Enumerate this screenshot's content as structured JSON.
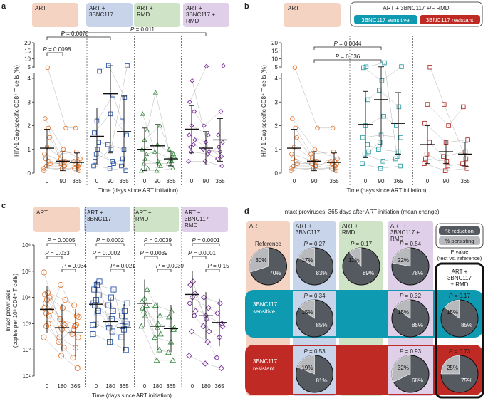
{
  "colors": {
    "art": "#f4d3c2",
    "art3bnc": "#c7d4ea",
    "artrmd": "#cfe3c6",
    "artall": "#dfcfe8",
    "orange": "#e8772e",
    "blue": "#2a55a8",
    "green": "#3a8e45",
    "purple": "#7a2f9e",
    "teal": "#2e9da3",
    "red": "#b6302b",
    "sens": "#0e9ab0",
    "resi": "#c02a24",
    "pie": "#555a61",
    "pieLight": "#b7b9bc"
  },
  "panels": {
    "a": {
      "letter": "a",
      "groups": [
        "ART",
        "ART +\n3BNC117",
        "ART +\nRMD",
        "ART +\n3BNC117 +\nRMD"
      ],
      "ylabel": "HIV-1 Gag-specific CD8⁺ T cells (%)",
      "xlabel": "Time (days since ART initiation)",
      "pvals": [
        "P = 0.0078",
        "P = 0.0098",
        "P = 0.011"
      ]
    },
    "b": {
      "letter": "b",
      "groups": [
        "ART",
        "ART + 3BNC117 +/− RMD",
        "3BNC117 sensitive",
        "3BNC117 resistant"
      ],
      "ylabel": "HIV-1 Gag-specific CD8⁺ T cells (%)",
      "xlabel": "Time (days since ART initiation)",
      "pvals": [
        "P = 0.0044",
        "P = 0.036"
      ]
    },
    "c": {
      "letter": "c",
      "groups": [
        "ART",
        "ART +\n3BNC117",
        "ART +\nRMD",
        "ART +\n3BNC117 +\nRMD"
      ],
      "ylabel": "Intact proviruses\n(copies per 10⁶ CD4⁺ T cells)",
      "xlabel": "Time (days since ART initiation)",
      "pvals": [
        [
          "P = 0.0005",
          "P = 0.033",
          "P = 0.034"
        ],
        [
          "P = 0.0002",
          "P = 0.0002",
          "P = 0.021"
        ],
        [
          "P = 0.0039",
          "P = 0.0039",
          "P = 0.0039"
        ],
        [
          "P = 0.0001",
          "P = 0.0001",
          "P = 0.15"
        ]
      ]
    },
    "d": {
      "letter": "d",
      "title": "Intact proviruses: 365 days after ART initiation (mean change)",
      "cols": [
        "ART",
        "ART +\n3BNC117",
        "ART +\nRMD",
        "ART +\n3BNC117 +\nRMD"
      ],
      "rows": [
        "Reference",
        "3BNC117\nsensitive",
        "3BNC117\nresistant"
      ],
      "legend": {
        "reduction": "% reduction",
        "persisting": "% persisting",
        "pvalue": "P value\n(test vs. reference)",
        "box": "ART +\n3BNC117\n± RMD"
      }
    }
  },
  "chart_data": [
    {
      "id": "a",
      "type": "scatter",
      "title": "",
      "xlabel": "Time (days since ART initiation)",
      "ylabel": "HIV-1 Gag-specific CD8⁺ T cells (%)",
      "x_ticks": [
        "0",
        "90",
        "365"
      ],
      "y_ticks_lower": [
        "0",
        "1",
        "2",
        "3",
        "4"
      ],
      "y_ticks_upper": [
        "5",
        "10",
        "15",
        "20"
      ],
      "series": [
        {
          "name": "ART",
          "points": [
            [
              0.1,
              0.3,
              0.5,
              0.8,
              1.1,
              1.5,
              2.3,
              4.6,
              0.4,
              0.6,
              1.9,
              0.2
            ],
            [
              0.2,
              0.3,
              0.4,
              0.5,
              0.5,
              0.6,
              1.0,
              1.9,
              0.4,
              0.3,
              0.8,
              0.2
            ],
            [
              0.1,
              0.2,
              0.3,
              0.4,
              0.4,
              0.5,
              0.6,
              1.9,
              0.3,
              0.5,
              0.9,
              0.2
            ]
          ],
          "mean": [
            1.05,
            0.5,
            0.45
          ],
          "sd": [
            0.8,
            0.4,
            0.4
          ]
        },
        {
          "name": "ART + 3BNC117",
          "points": [
            [
              0.3,
              0.8,
              1.3,
              1.7,
              2.2,
              4.3,
              0.5,
              1.0
            ],
            [
              0.2,
              0.5,
              1.2,
              2.5,
              3.3,
              5.9,
              1.0,
              0.4
            ],
            [
              0.1,
              0.3,
              1.0,
              1.6,
              2.2,
              3.2,
              5.8,
              0.6
            ]
          ],
          "mean": [
            1.55,
            3.35,
            1.75
          ],
          "sd": [
            1.2,
            2.5,
            1.5
          ]
        },
        {
          "name": "ART + RMD",
          "points": [
            [
              0.1,
              0.4,
              0.8,
              1.0,
              1.4,
              1.8,
              2.5,
              0.6,
              0.2
            ],
            [
              0.1,
              0.4,
              0.9,
              1.2,
              2.0,
              3.4,
              0.5,
              0.3
            ],
            [
              0.2,
              0.4,
              0.6,
              0.8,
              1.0,
              0.5,
              0.7
            ]
          ],
          "mean": [
            1.0,
            1.15,
            0.6
          ],
          "sd": [
            0.9,
            0.9,
            0.3
          ]
        },
        {
          "name": "ART + 3BNC117 + RMD",
          "points": [
            [
              0.5,
              0.9,
              1.2,
              1.6,
              2.0,
              2.6,
              3.0,
              3.9,
              1.4,
              1.1
            ],
            [
              0.5,
              0.8,
              1.0,
              1.3,
              1.6,
              2.0,
              5.4,
              0.9
            ],
            [
              0.3,
              0.6,
              0.9,
              1.3,
              1.6,
              2.6,
              5.7,
              1.1,
              0.7
            ]
          ],
          "mean": [
            1.85,
            1.05,
            1.4
          ],
          "sd": [
            1.0,
            0.7,
            0.9
          ]
        }
      ]
    },
    {
      "id": "b",
      "type": "scatter",
      "xlabel": "Time (days since ART initiation)",
      "ylabel": "HIV-1 Gag-specific CD8⁺ T cells (%)",
      "x_ticks": [
        "0",
        "90",
        "365"
      ],
      "y_ticks_lower": [
        "0",
        "1",
        "2",
        "3",
        "4"
      ],
      "y_ticks_upper": [
        "5",
        "10",
        "15",
        "20"
      ],
      "series": [
        {
          "name": "ART",
          "points": [
            [
              0.1,
              0.3,
              0.5,
              0.8,
              1.1,
              1.5,
              2.3,
              4.6,
              0.4,
              0.6,
              1.9,
              0.2
            ],
            [
              0.2,
              0.3,
              0.4,
              0.5,
              0.5,
              0.6,
              1.0,
              1.9,
              0.4,
              0.3,
              0.8,
              0.2
            ],
            [
              0.1,
              0.2,
              0.3,
              0.4,
              0.4,
              0.5,
              0.6,
              1.9,
              0.3,
              0.5,
              0.9,
              0.2
            ]
          ],
          "mean": [
            1.05,
            0.5,
            0.45
          ],
          "sd": [
            0.8,
            0.4,
            0.4
          ]
        },
        {
          "name": "3BNC117 sensitive",
          "points": [
            [
              0.4,
              0.8,
              1.2,
              1.5,
              2.0,
              3.1,
              4.6,
              5.1,
              0.9
            ],
            [
              0.2,
              0.5,
              1.0,
              1.6,
              2.4,
              3.5,
              3.9,
              7.6,
              1.3
            ],
            [
              0.3,
              0.6,
              0.9,
              1.5,
              2.0,
              2.8,
              5.2,
              0.7
            ]
          ],
          "mean": [
            2.05,
            3.1,
            2.1
          ],
          "sd": [
            1.4,
            2.0,
            1.3
          ]
        },
        {
          "name": "3BNC117 resistant",
          "points": [
            [
              0.4,
              0.8,
              1.3,
              2.1,
              2.9,
              4.9,
              0.6
            ],
            [
              0.1,
              0.3,
              0.7,
              1.3,
              2.0,
              2.9,
              0.5
            ],
            [
              0.2,
              0.4,
              0.9,
              1.4,
              2.8,
              0.6
            ]
          ],
          "mean": [
            1.2,
            0.9,
            0.8
          ],
          "sd": [
            0.8,
            0.5,
            0.5
          ]
        }
      ]
    },
    {
      "id": "c",
      "type": "scatter",
      "yscale": "log",
      "xlabel": "Time (days since ART initiation)",
      "ylabel": "Intact proviruses (copies per 10⁶ CD4⁺ T cells)",
      "x_ticks": [
        "0",
        "180",
        "365"
      ],
      "y_ticks": [
        "10¹",
        "10²",
        "10³",
        "10⁴",
        "10⁵",
        "10⁶"
      ],
      "ylim": [
        10,
        1000000
      ],
      "series": [
        {
          "name": "ART",
          "points": [
            [
              300,
              800,
              2000,
              4000,
              8000,
              10000,
              13000,
              15000,
              3000,
              6000,
              1000,
              90000,
              2500
            ],
            [
              60,
              120,
              300,
              600,
              900,
              1500,
              4000,
              8000,
              30000,
              1000,
              200,
              700
            ],
            [
              20,
              50,
              120,
              300,
              600,
              900,
              1800,
              5000,
              2000,
              400,
              800
            ]
          ],
          "mean": [
            3500,
            700,
            450
          ]
        },
        {
          "name": "ART + 3BNC117",
          "points": [
            [
              400,
              1000,
              3000,
              6000,
              8000,
              12000,
              20000,
              30000,
              40000,
              5000,
              2500,
              900
            ],
            [
              200,
              500,
              1000,
              2000,
              3000,
              5000,
              10000,
              20000,
              700,
              1500
            ],
            [
              100,
              300,
              600,
              1000,
              2000,
              3000,
              6000,
              800,
              1200
            ]
          ],
          "mean": [
            5500,
            1200,
            700
          ]
        },
        {
          "name": "ART + RMD",
          "points": [
            [
              800,
              3000,
              5000,
              7000,
              9000,
              20000,
              4000,
              2000
            ],
            [
              40,
              100,
              300,
              700,
              2000,
              5000,
              1000,
              400
            ],
            [
              40,
              80,
              200,
              600,
              1800,
              3000,
              700
            ]
          ],
          "mean": [
            6000,
            800,
            650
          ]
        },
        {
          "name": "ART + 3BNC117 + RMD",
          "points": [
            [
              60,
              500,
              2000,
              6000,
              10000,
              14000,
              30000,
              40000,
              3000
            ],
            [
              30,
              200,
              800,
              2000,
              4000,
              10000,
              1500,
              500
            ],
            [
              20,
              50,
              300,
              1000,
              2500,
              6000,
              800
            ]
          ],
          "mean": [
            13000,
            2000,
            1100
          ]
        }
      ]
    },
    {
      "id": "d",
      "type": "pie",
      "title": "Intact proviruses: 365 days after ART initiation (mean change)",
      "pies": [
        {
          "row": "Reference",
          "col": "ART",
          "reduction": 70,
          "persisting": 30,
          "p": "",
          "label": "Reference"
        },
        {
          "row": "Reference",
          "col": "ART + 3BNC117",
          "reduction": 83,
          "persisting": 17,
          "p": "P = 0.27"
        },
        {
          "row": "Reference",
          "col": "ART + RMD",
          "reduction": 89,
          "persisting": 11,
          "p": "P = 0.17"
        },
        {
          "row": "Reference",
          "col": "ART + 3BNC117 + RMD",
          "reduction": 78,
          "persisting": 22,
          "p": "P = 0.54"
        },
        {
          "row": "3BNC117 sensitive",
          "col": "ART + 3BNC117",
          "reduction": 85,
          "persisting": 15,
          "p": "P = 0.34"
        },
        {
          "row": "3BNC117 sensitive",
          "col": "ART + 3BNC117 + RMD",
          "reduction": 85,
          "persisting": 15,
          "p": "P = 0.32"
        },
        {
          "row": "3BNC117 sensitive",
          "col": "ART + 3BNC117 ± RMD",
          "reduction": 85,
          "persisting": 15,
          "p": "P = 0.17"
        },
        {
          "row": "3BNC117 resistant",
          "col": "ART + 3BNC117",
          "reduction": 81,
          "persisting": 19,
          "p": "P = 0.53"
        },
        {
          "row": "3BNC117 resistant",
          "col": "ART + 3BNC117 + RMD",
          "reduction": 68,
          "persisting": 32,
          "p": "P = 0.93"
        },
        {
          "row": "3BNC117 resistant",
          "col": "ART + 3BNC117 ± RMD",
          "reduction": 75,
          "persisting": 25,
          "p": "P = 0.73"
        }
      ]
    }
  ]
}
